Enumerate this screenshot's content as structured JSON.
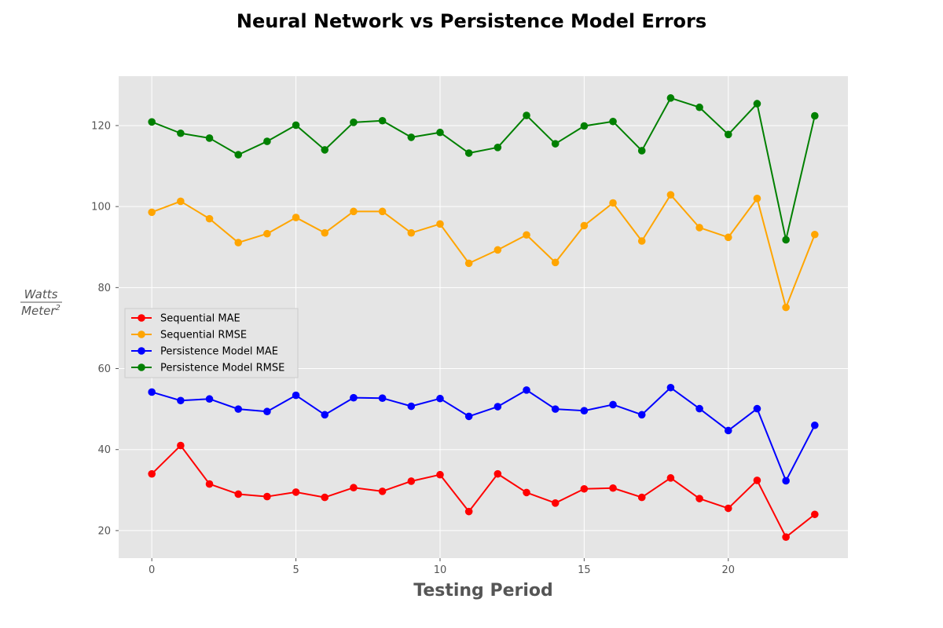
{
  "chart_data": {
    "type": "line",
    "title": "Neural Network vs Persistence Model Errors",
    "xlabel": "Testing Period",
    "ylabel": {
      "numerator": "Watts",
      "denominator": "Meter",
      "denominator_exponent": "2"
    },
    "x": [
      0,
      1,
      2,
      3,
      4,
      5,
      6,
      7,
      8,
      9,
      10,
      11,
      12,
      13,
      14,
      15,
      16,
      17,
      18,
      19,
      20,
      21,
      22,
      23
    ],
    "xlim": [
      -1.15,
      24.15
    ],
    "ylim": [
      13.2,
      132.2
    ],
    "xticks": [
      0,
      5,
      10,
      15,
      20
    ],
    "yticks": [
      20,
      40,
      60,
      80,
      100,
      120
    ],
    "grid": true,
    "legend_position": "center-left",
    "series": [
      {
        "name": "Sequential MAE",
        "color": "#ff0000",
        "values": [
          34.0,
          41.0,
          31.5,
          29.0,
          28.4,
          29.5,
          28.2,
          30.6,
          29.7,
          32.2,
          33.8,
          24.7,
          34.0,
          29.4,
          26.8,
          30.3,
          30.5,
          28.2,
          33.0,
          27.9,
          25.5,
          32.4,
          18.4,
          24.0
        ]
      },
      {
        "name": "Sequential RMSE",
        "color": "#ffa500",
        "values": [
          98.6,
          101.3,
          97.0,
          91.1,
          93.3,
          97.3,
          93.5,
          98.8,
          98.8,
          93.5,
          95.7,
          86.0,
          89.3,
          93.0,
          86.2,
          95.3,
          100.9,
          91.5,
          102.9,
          94.8,
          92.4,
          102.0,
          75.1,
          93.1
        ]
      },
      {
        "name": "Persistence Model MAE",
        "color": "#0000ff",
        "values": [
          54.2,
          52.1,
          52.5,
          50.0,
          49.4,
          53.4,
          48.6,
          52.8,
          52.7,
          50.7,
          52.6,
          48.2,
          50.6,
          54.7,
          50.0,
          49.6,
          51.1,
          48.6,
          55.3,
          50.1,
          44.7,
          50.1,
          32.3,
          46.0
        ]
      },
      {
        "name": "Persistence Model RMSE",
        "color": "#008000",
        "values": [
          120.9,
          118.1,
          116.9,
          112.8,
          116.1,
          120.1,
          114.0,
          120.8,
          121.2,
          117.1,
          118.3,
          113.2,
          114.6,
          122.5,
          115.5,
          119.9,
          121.0,
          113.8,
          126.8,
          124.5,
          117.8,
          125.4,
          91.8,
          122.4
        ]
      }
    ]
  }
}
